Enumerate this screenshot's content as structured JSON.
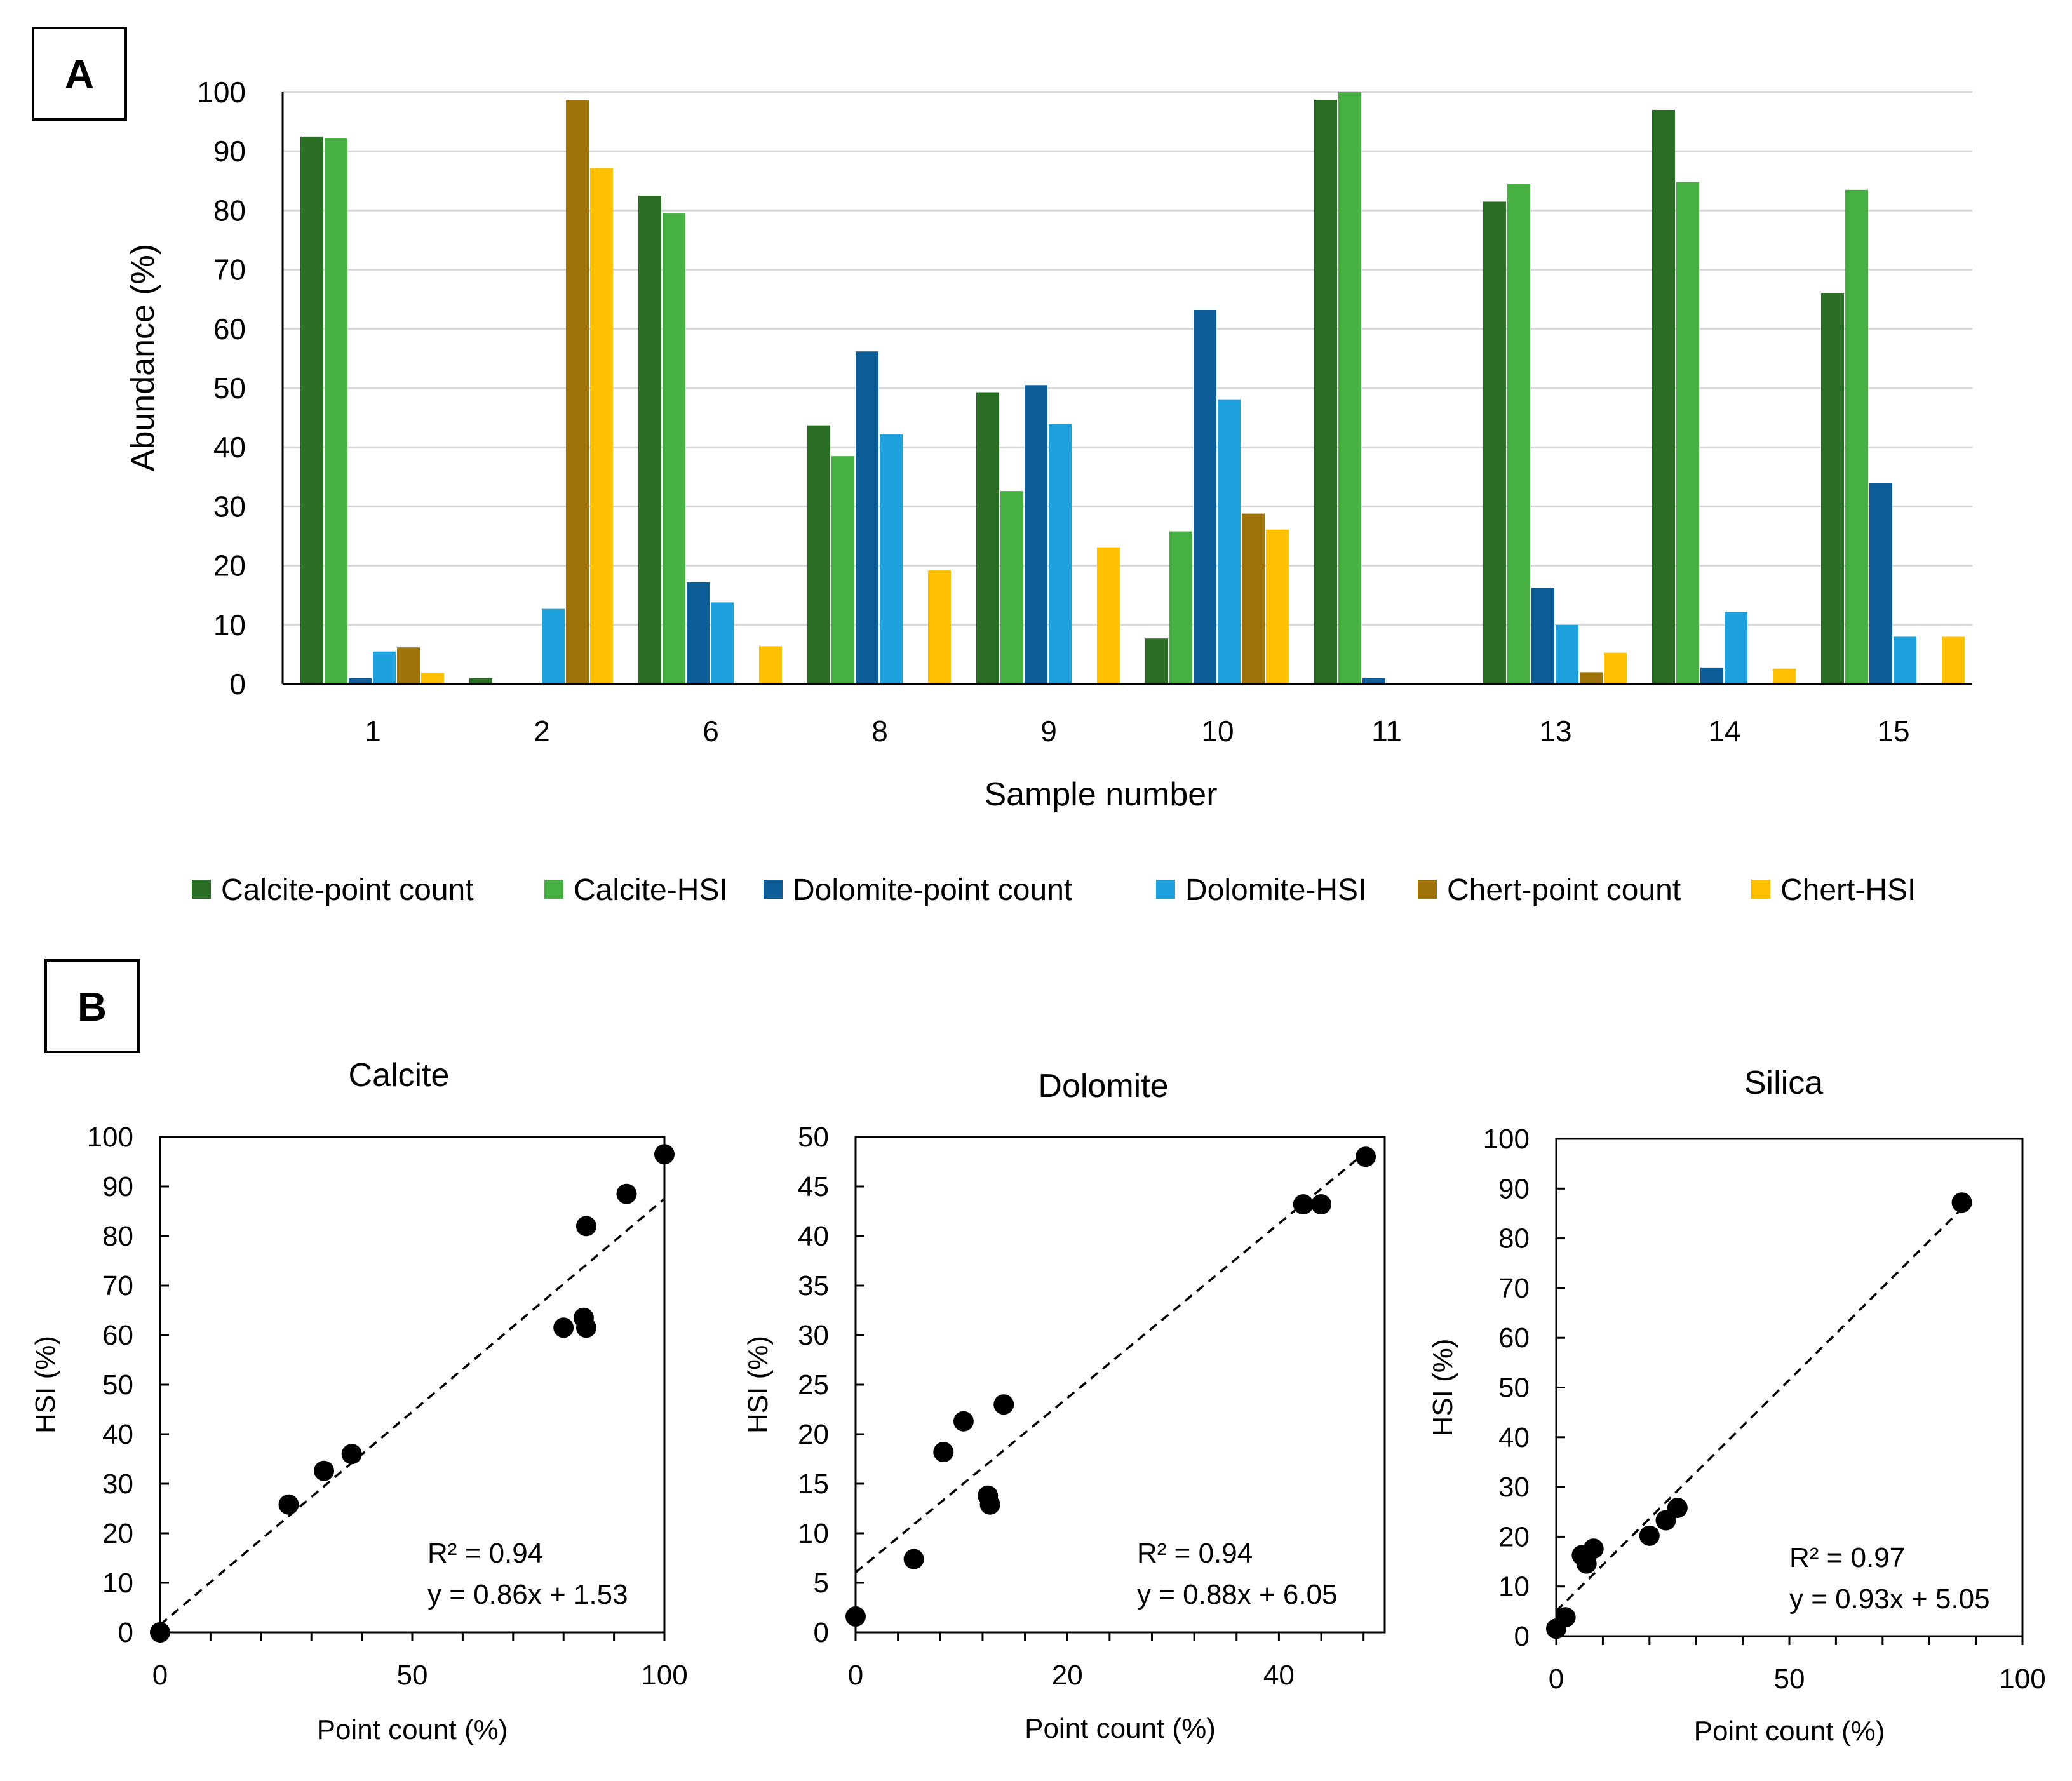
{
  "panel_a": {
    "label": "A"
  },
  "panel_b": {
    "label": "B"
  },
  "colors": {
    "calcite_point": "#2a6e26",
    "calcite_hsi": "#47b043",
    "dolomite_point": "#0d5d99",
    "dolomite_hsi": "#1ea1dc",
    "chert_point": "#a0720a",
    "chert_hsi": "#fec000"
  },
  "chart_data": [
    {
      "id": "bar",
      "type": "bar",
      "title": "",
      "xlabel": "Sample number",
      "ylabel": "Abundance (%)",
      "ylim": [
        0,
        100
      ],
      "yticks": [
        0,
        10,
        20,
        30,
        40,
        50,
        60,
        70,
        80,
        90,
        100
      ],
      "grid": true,
      "legend_position": "bottom",
      "categories": [
        "1",
        "2",
        "6",
        "8",
        "9",
        "10",
        "11",
        "13",
        "14",
        "15"
      ],
      "series": [
        {
          "name": "Calcite-point count",
          "color_key": "calcite_point",
          "values": [
            92.5,
            1,
            82.5,
            43.7,
            49.3,
            7.7,
            98.7,
            81.5,
            97,
            66
          ]
        },
        {
          "name": "Calcite-HSI",
          "color_key": "calcite_hsi",
          "values": [
            92.2,
            0,
            79.5,
            38.5,
            32.6,
            25.8,
            100,
            84.5,
            84.8,
            83.5
          ]
        },
        {
          "name": "Dolomite-point count",
          "color_key": "dolomite_point",
          "values": [
            1,
            0,
            17.2,
            56.2,
            50.5,
            63.2,
            1,
            16.3,
            2.8,
            34
          ]
        },
        {
          "name": "Dolomite-HSI",
          "color_key": "dolomite_hsi",
          "values": [
            5.5,
            12.7,
            13.8,
            42.2,
            43.9,
            48.1,
            0,
            10,
            12.2,
            8
          ]
        },
        {
          "name": "Chert-point count",
          "color_key": "chert_point",
          "values": [
            6.2,
            98.7,
            0,
            0,
            0,
            28.8,
            0,
            2,
            0,
            0
          ]
        },
        {
          "name": "Chert-HSI",
          "color_key": "chert_hsi",
          "values": [
            1.9,
            87.2,
            6.4,
            19.2,
            23.1,
            26.1,
            0,
            5.3,
            2.6,
            8
          ]
        }
      ]
    },
    {
      "id": "calcite",
      "type": "scatter",
      "title": "Calcite",
      "xlabel": "Point count (%)",
      "ylabel": "HSI (%)",
      "xlim": [
        0,
        100
      ],
      "ylim": [
        0,
        100
      ],
      "xticks": [
        0,
        50,
        100
      ],
      "yticks": [
        0,
        10,
        20,
        30,
        40,
        50,
        60,
        70,
        80,
        90,
        100
      ],
      "points": [
        [
          0,
          0
        ],
        [
          25.5,
          25.8
        ],
        [
          32.5,
          32.6
        ],
        [
          38,
          36
        ],
        [
          80,
          61.5
        ],
        [
          84,
          63.5
        ],
        [
          84.5,
          61.5
        ],
        [
          84.5,
          82
        ],
        [
          92.5,
          88.5
        ],
        [
          100,
          96.5
        ]
      ],
      "trendline": {
        "slope": 0.86,
        "intercept": 1.53,
        "x_range": [
          0,
          100
        ]
      },
      "r2_text": "R² = 0.94",
      "eq_text": "y = 0.86x + 1.53"
    },
    {
      "id": "dolomite",
      "type": "scatter",
      "title": "Dolomite",
      "xlabel": "Point count (%)",
      "ylabel": "HSI (%)",
      "xlim": [
        0,
        50
      ],
      "ylim": [
        0,
        50
      ],
      "xticks": [
        0,
        20,
        40
      ],
      "yticks": [
        0,
        5,
        10,
        15,
        20,
        25,
        30,
        35,
        40,
        45,
        50
      ],
      "points": [
        [
          0,
          1.6
        ],
        [
          5.5,
          7.4
        ],
        [
          8.3,
          18.2
        ],
        [
          10.2,
          21.3
        ],
        [
          12.5,
          13.8
        ],
        [
          12.7,
          12.9
        ],
        [
          14,
          23
        ],
        [
          42.3,
          43.2
        ],
        [
          44,
          43.2
        ],
        [
          48.2,
          48
        ]
      ],
      "trendline": {
        "slope": 0.88,
        "intercept": 6.05,
        "x_range": [
          0,
          48.2
        ]
      },
      "r2_text": "R² = 0.94",
      "eq_text": "y = 0.88x + 6.05"
    },
    {
      "id": "silica",
      "type": "scatter",
      "title": "Silica",
      "xlabel": "Point count (%)",
      "ylabel": "HSI (%)",
      "xlim": [
        0,
        100
      ],
      "ylim": [
        0,
        100
      ],
      "xticks": [
        0,
        50,
        100
      ],
      "yticks": [
        0,
        10,
        20,
        30,
        40,
        50,
        60,
        70,
        80,
        90,
        100
      ],
      "points": [
        [
          0,
          1.5
        ],
        [
          2,
          3.8
        ],
        [
          5.5,
          16.3
        ],
        [
          6.5,
          14.6
        ],
        [
          8,
          17.6
        ],
        [
          20,
          20.2
        ],
        [
          23.5,
          23.3
        ],
        [
          26,
          25.8
        ],
        [
          87,
          87.2
        ]
      ],
      "trendline": {
        "slope": 0.93,
        "intercept": 5.05,
        "x_range": [
          0,
          87
        ]
      },
      "r2_text": "R² = 0.97",
      "eq_text": "y = 0.93x + 5.05"
    }
  ]
}
